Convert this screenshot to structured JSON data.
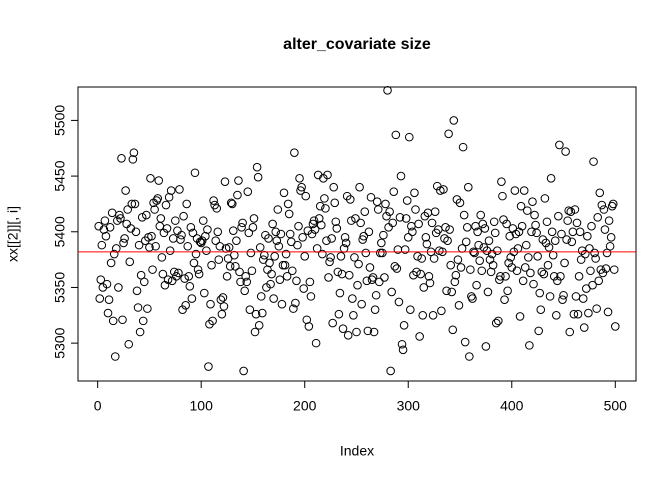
{
  "chart_data": {
    "type": "scatter",
    "title": "alter_covariate size",
    "x_label": "Index",
    "y_label": "xx[[2]][, i]",
    "xlim": [
      -19,
      520
    ],
    "ylim": [
      5266,
      5530
    ],
    "xticks": [
      0,
      100,
      200,
      300,
      400,
      500
    ],
    "yticks": [
      5300,
      5350,
      5400,
      5450,
      5500
    ],
    "color": "#000000",
    "hline": {
      "value": 5382,
      "color": "#ff0000"
    },
    "x": [
      1,
      2,
      3,
      4,
      5,
      6,
      7,
      8,
      9,
      10,
      11,
      12,
      13,
      14,
      15,
      16,
      17,
      18,
      19,
      20,
      21,
      22,
      23,
      24,
      25,
      26,
      27,
      28,
      29,
      30,
      31,
      32,
      33,
      34,
      35,
      36,
      37,
      38,
      39,
      40,
      41,
      42,
      43,
      44,
      45,
      46,
      47,
      48,
      49,
      50,
      51,
      52,
      53,
      54,
      55,
      56,
      57,
      58,
      59,
      60,
      61,
      62,
      63,
      64,
      65,
      66,
      67,
      68,
      69,
      70,
      71,
      72,
      73,
      74,
      75,
      76,
      77,
      78,
      79,
      80,
      81,
      82,
      83,
      84,
      85,
      86,
      87,
      88,
      89,
      90,
      91,
      92,
      93,
      94,
      95,
      96,
      97,
      98,
      99,
      100,
      101,
      102,
      103,
      104,
      105,
      106,
      107,
      108,
      109,
      110,
      111,
      112,
      113,
      114,
      115,
      116,
      117,
      118,
      119,
      120,
      121,
      122,
      123,
      124,
      125,
      126,
      127,
      128,
      129,
      130,
      131,
      132,
      133,
      134,
      135,
      136,
      137,
      138,
      139,
      140,
      141,
      142,
      143,
      144,
      145,
      146,
      147,
      148,
      149,
      150,
      151,
      152,
      153,
      154,
      155,
      156,
      157,
      158,
      159,
      160,
      161,
      162,
      163,
      164,
      165,
      166,
      167,
      168,
      169,
      170,
      171,
      172,
      173,
      174,
      175,
      176,
      177,
      178,
      179,
      180,
      181,
      182,
      183,
      184,
      185,
      186,
      187,
      188,
      189,
      190,
      191,
      192,
      193,
      194,
      195,
      196,
      197,
      198,
      199,
      200,
      201,
      202,
      203,
      204,
      205,
      206,
      207,
      208,
      209,
      210,
      211,
      212,
      213,
      214,
      215,
      216,
      217,
      218,
      219,
      220,
      221,
      222,
      223,
      224,
      225,
      226,
      227,
      228,
      229,
      230,
      231,
      232,
      233,
      234,
      235,
      236,
      237,
      238,
      239,
      240,
      241,
      242,
      243,
      244,
      245,
      246,
      247,
      248,
      249,
      250,
      251,
      252,
      253,
      254,
      255,
      256,
      257,
      258,
      259,
      260,
      261,
      262,
      263,
      264,
      265,
      266,
      267,
      268,
      269,
      270,
      271,
      272,
      273,
      274,
      275,
      276,
      277,
      278,
      279,
      280,
      281,
      282,
      283,
      284,
      285,
      286,
      287,
      288,
      289,
      290,
      291,
      292,
      293,
      294,
      295,
      296,
      297,
      298,
      299,
      300,
      301,
      302,
      303,
      304,
      305,
      306,
      307,
      308,
      309,
      310,
      311,
      312,
      313,
      314,
      315,
      316,
      317,
      318,
      319,
      320,
      321,
      322,
      323,
      324,
      325,
      326,
      327,
      328,
      329,
      330,
      331,
      332,
      333,
      334,
      335,
      336,
      337,
      338,
      339,
      340,
      341,
      342,
      343,
      344,
      345,
      346,
      347,
      348,
      349,
      350,
      351,
      352,
      353,
      354,
      355,
      356,
      357,
      358,
      359,
      360,
      361,
      362,
      363,
      364,
      365,
      366,
      367,
      368,
      369,
      370,
      371,
      372,
      373,
      374,
      375,
      376,
      377,
      378,
      379,
      380,
      381,
      382,
      383,
      384,
      385,
      386,
      387,
      388,
      389,
      390,
      391,
      392,
      393,
      394,
      395,
      396,
      397,
      398,
      399,
      400,
      401,
      402,
      403,
      404,
      405,
      406,
      407,
      408,
      409,
      410,
      411,
      412,
      413,
      414,
      415,
      416,
      417,
      418,
      419,
      420,
      421,
      422,
      423,
      424,
      425,
      426,
      427,
      428,
      429,
      430,
      431,
      432,
      433,
      434,
      435,
      436,
      437,
      438,
      439,
      440,
      441,
      442,
      443,
      444,
      445,
      446,
      447,
      448,
      449,
      450,
      451,
      452,
      453,
      454,
      455,
      456,
      457,
      458,
      459,
      460,
      461,
      462,
      463,
      464,
      465,
      466,
      467,
      468,
      469,
      470,
      471,
      472,
      473,
      474,
      475,
      476,
      477,
      478,
      479,
      480,
      481,
      482,
      483,
      484,
      485,
      486,
      487,
      488,
      489,
      490,
      491,
      492,
      493,
      494,
      495,
      496,
      497,
      498,
      499,
      500
    ],
    "values": [
      5405,
      5340,
      5357,
      5388,
      5350,
      5402,
      5410,
      5396,
      5353,
      5327,
      5339,
      5404,
      5372,
      5417,
      5320,
      5380,
      5288,
      5385,
      5410,
      5350,
      5415,
      5412,
      5466,
      5321,
      5390,
      5394,
      5437,
      5407,
      5420,
      5299,
      5373,
      5403,
      5425,
      5465,
      5471,
      5425,
      5400,
      5347,
      5332,
      5388,
      5310,
      5361,
      5413,
      5320,
      5355,
      5392,
      5415,
      5331,
      5395,
      5386,
      5448,
      5396,
      5366,
      5426,
      5420,
      5387,
      5428,
      5430,
      5446,
      5405,
      5412,
      5377,
      5362,
      5399,
      5352,
      5424,
      5403,
      5357,
      5431,
      5383,
      5437,
      5356,
      5394,
      5364,
      5410,
      5360,
      5401,
      5363,
      5438,
      5393,
      5397,
      5330,
      5414,
      5358,
      5334,
      5425,
      5387,
      5360,
      5351,
      5404,
      5340,
      5399,
      5372,
      5453,
      5380,
      5394,
      5366,
      5362,
      5391,
      5390,
      5392,
      5410,
      5345,
      5396,
      5383,
      5402,
      5279,
      5317,
      5335,
      5370,
      5320,
      5428,
      5424,
      5392,
      5421,
      5400,
      5375,
      5387,
      5339,
      5326,
      5341,
      5333,
      5445,
      5385,
      5360,
      5376,
      5386,
      5369,
      5426,
      5425,
      5401,
      5379,
      5369,
      5392,
      5433,
      5446,
      5364,
      5355,
      5404,
      5408,
      5275,
      5347,
      5360,
      5355,
      5436,
      5399,
      5330,
      5381,
      5365,
      5404,
      5412,
      5310,
      5326,
      5458,
      5449,
      5316,
      5386,
      5342,
      5327,
      5375,
      5379,
      5397,
      5350,
      5366,
      5394,
      5372,
      5353,
      5362,
      5407,
      5340,
      5378,
      5400,
      5392,
      5420,
      5387,
      5357,
      5398,
      5335,
      5370,
      5435,
      5370,
      5380,
      5360,
      5425,
      5416,
      5398,
      5391,
      5365,
      5331,
      5471,
      5336,
      5356,
      5388,
      5405,
      5448,
      5437,
      5440,
      5395,
      5349,
      5378,
      5432,
      5321,
      5401,
      5315,
      5355,
      5342,
      5398,
      5407,
      5410,
      5402,
      5300,
      5385,
      5451,
      5412,
      5423,
      5406,
      5380,
      5448,
      5430,
      5421,
      5392,
      5451,
      5359,
      5373,
      5377,
      5394,
      5318,
      5440,
      5426,
      5409,
      5403,
      5364,
      5326,
      5345,
      5378,
      5362,
      5313,
      5385,
      5395,
      5390,
      5432,
      5307,
      5361,
      5429,
      5410,
      5340,
      5325,
      5377,
      5412,
      5310,
      5352,
      5371,
      5440,
      5408,
      5335,
      5393,
      5396,
      5418,
      5381,
      5356,
      5311,
      5400,
      5368,
      5431,
      5357,
      5359,
      5310,
      5330,
      5343,
      5427,
      5420,
      5355,
      5381,
      5390,
      5381,
      5397,
      5359,
      5425,
      5414,
      5527,
      5404,
      5418,
      5275,
      5346,
      5408,
      5436,
      5369,
      5487,
      5367,
      5384,
      5337,
      5413,
      5450,
      5299,
      5294,
      5316,
      5384,
      5412,
      5428,
      5395,
      5485,
      5330,
      5405,
      5400,
      5361,
      5435,
      5420,
      5364,
      5378,
      5407,
      5306,
      5362,
      5376,
      5325,
      5350,
      5414,
      5395,
      5389,
      5417,
      5360,
      5354,
      5382,
      5408,
      5325,
      5376,
      5418,
      5399,
      5441,
      5402,
      5383,
      5437,
      5329,
      5382,
      5438,
      5394,
      5404,
      5347,
      5392,
      5488,
      5402,
      5370,
      5346,
      5312,
      5500,
      5355,
      5361,
      5429,
      5375,
      5334,
      5426,
      5368,
      5385,
      5476,
      5415,
      5301,
      5391,
      5404,
      5440,
      5288,
      5366,
      5342,
      5340,
      5382,
      5381,
      5405,
      5352,
      5400,
      5388,
      5374,
      5415,
      5365,
      5407,
      5386,
      5403,
      5297,
      5383,
      5346,
      5392,
      5375,
      5364,
      5380,
      5370,
      5409,
      5399,
      5318,
      5383,
      5320,
      5357,
      5360,
      5445,
      5432,
      5411,
      5339,
      5360,
      5407,
      5347,
      5372,
      5396,
      5377,
      5368,
      5403,
      5382,
      5437,
      5398,
      5365,
      5385,
      5400,
      5324,
      5423,
      5405,
      5356,
      5437,
      5368,
      5388,
      5419,
      5377,
      5298,
      5363,
      5400,
      5427,
      5353,
      5415,
      5406,
      5399,
      5378,
      5311,
      5345,
      5330,
      5364,
      5393,
      5362,
      5430,
      5390,
      5409,
      5370,
      5386,
      5342,
      5448,
      5400,
      5379,
      5360,
      5392,
      5325,
      5356,
      5414,
      5478,
      5360,
      5398,
      5339,
      5343,
      5372,
      5472,
      5393,
      5410,
      5419,
      5310,
      5418,
      5391,
      5400,
      5326,
      5420,
      5342,
      5408,
      5326,
      5360,
      5400,
      5375,
      5383,
      5340,
      5314,
      5380,
      5349,
      5396,
      5327,
      5385,
      5365,
      5405,
      5352,
      5463,
      5381,
      5376,
      5331,
      5413,
      5356,
      5435,
      5366,
      5424,
      5363,
      5420,
      5402,
      5367,
      5381,
      5328,
      5410,
      5387,
      5395,
      5423,
      5425,
      5366,
      5315
    ]
  }
}
